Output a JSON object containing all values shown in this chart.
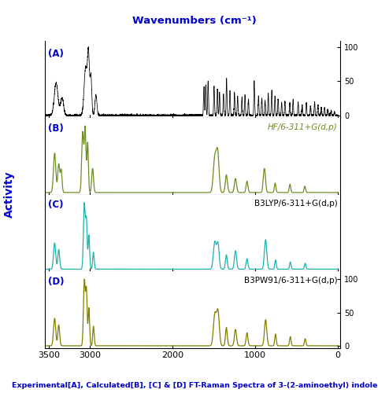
{
  "title_top": "Wavenumbers (cm⁻¹)",
  "title_bottom": "Experimental[A], Calculated[B], [C] & [D] FT-Raman Spectra of 3-(2-aminoethyl) indole",
  "ylabel": "Activity",
  "panel_labels": [
    "(A)",
    "(B)",
    "(C)",
    "(D)"
  ],
  "panel_annotations": [
    "",
    "HF/6-311+G(d,p)",
    "B3LYP/6-311+G(d,p)",
    "B3PW91/6-311+G(d,p)"
  ],
  "title_color": "#0000CC",
  "bottom_text_color": "#0000CC",
  "panel_label_color": "#0000CC",
  "annotation_color_B": "#6B8E23",
  "annotation_color_CD": "#000000",
  "background_color": "#FFFFFF",
  "line_color_A": "#000000",
  "line_color_B": "#6B8E23",
  "line_color_C": "#20B2AA",
  "line_color_D": "#808000",
  "xlim_left": 3550,
  "xlim_right": -30
}
